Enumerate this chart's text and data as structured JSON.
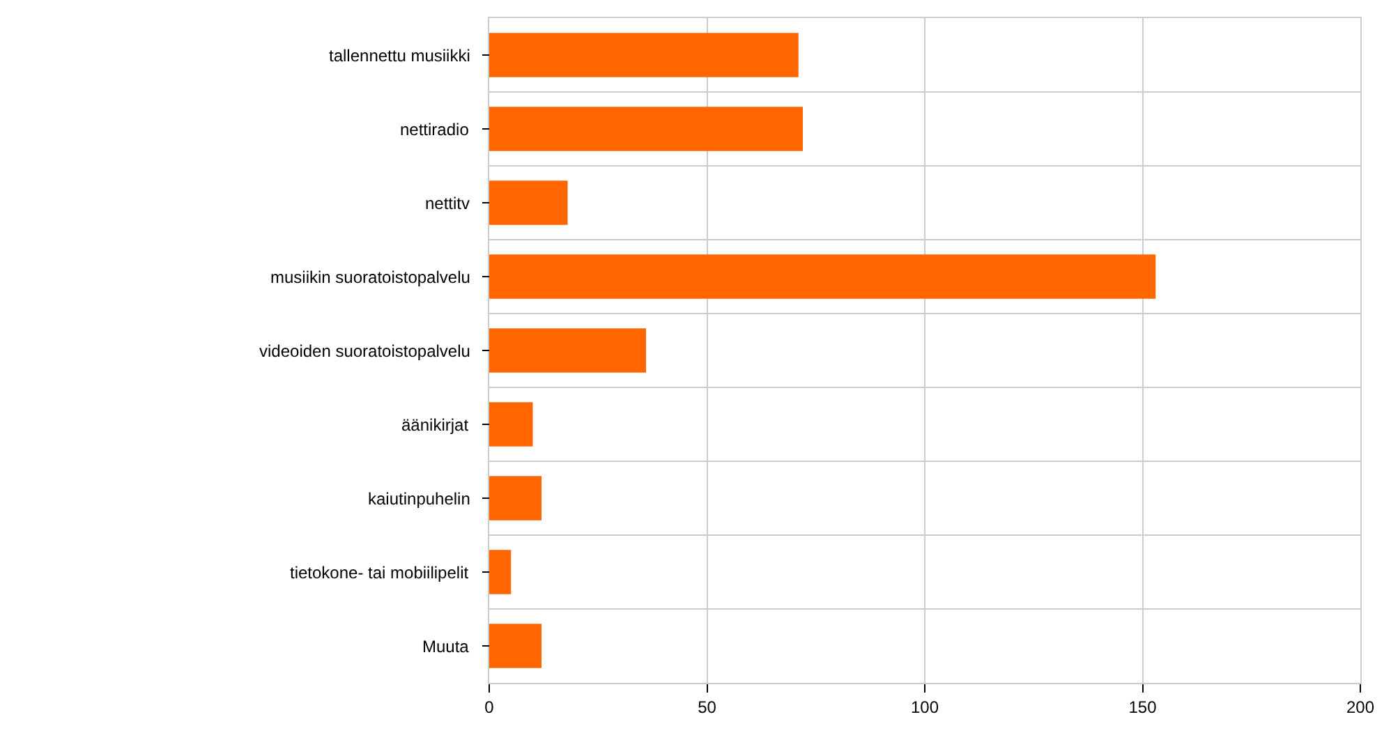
{
  "chart_data": {
    "type": "bar",
    "orientation": "horizontal",
    "categories": [
      "tallennettu musiikki",
      "nettiradio",
      "nettitv",
      "musiikin suoratoistopalvelu",
      "videoiden suoratoistopalvelu",
      "äänikirjat",
      "kaiutinpuhelin",
      "tietokone- tai mobiilipelit",
      "Muuta"
    ],
    "values": [
      71,
      72,
      18,
      153,
      36,
      10,
      12,
      5,
      12
    ],
    "color": "#ff6600",
    "xlim": [
      0,
      200
    ],
    "xticks": [
      0,
      50,
      100,
      150,
      200
    ],
    "grid": true
  }
}
